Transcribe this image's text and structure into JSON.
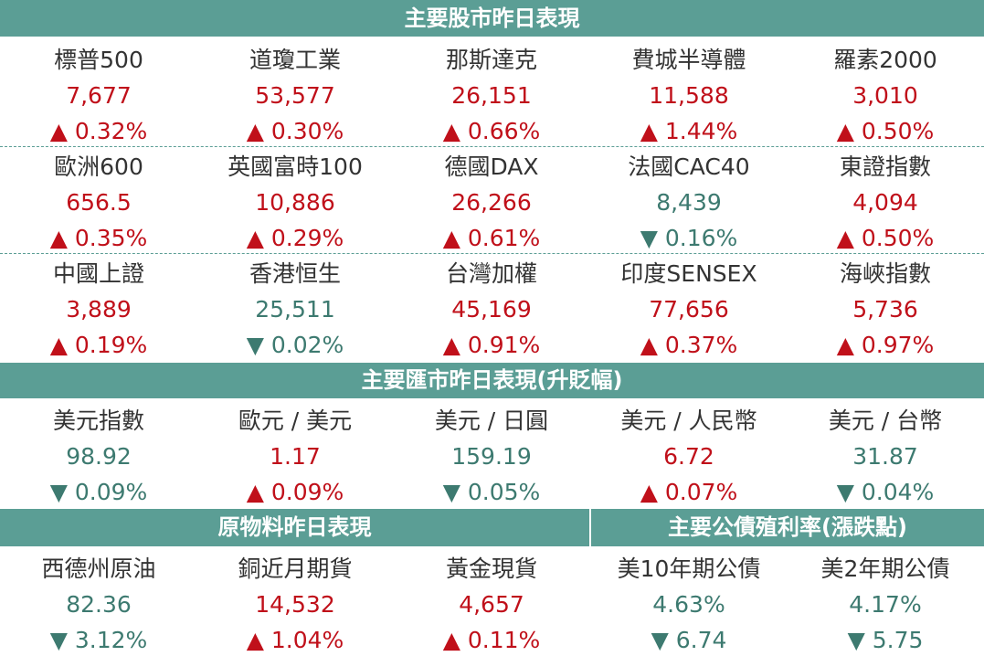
{
  "stocks": {
    "title": "主要股市昨日表現",
    "rows": [
      [
        {
          "name": "標普500",
          "value": "7,677",
          "change": "▲ 0.32%"
        },
        {
          "name": "道瓊工業",
          "value": "53,577",
          "change": "▲ 0.30%"
        },
        {
          "name": "那斯達克",
          "value": "26,151",
          "change": "▲ 0.66%"
        },
        {
          "name": "費城半導體",
          "value": "11,588",
          "change": "▲ 1.44%"
        },
        {
          "name": "羅素2000",
          "value": "3,010",
          "change": "▲ 0.50%"
        }
      ],
      [
        {
          "name": "歐洲600",
          "value": "656.5",
          "change": "▲ 0.35%"
        },
        {
          "name": "英國富時100",
          "value": "10,886",
          "change": "▲ 0.29%"
        },
        {
          "name": "德國DAX",
          "value": "26,266",
          "change": "▲ 0.61%"
        },
        {
          "name": "法國CAC40",
          "value": "8,439",
          "change": "▼ 0.16%"
        },
        {
          "name": "東證指數",
          "value": "4,094",
          "change": "▲ 0.50%"
        }
      ],
      [
        {
          "name": "中國上證",
          "value": "3,889",
          "change": "▲ 0.19%"
        },
        {
          "name": "香港恒生",
          "value": "25,511",
          "change": "▼ 0.02%"
        },
        {
          "name": "台灣加權",
          "value": "45,169",
          "change": "▲ 0.91%"
        },
        {
          "name": "印度SENSEX",
          "value": "77,656",
          "change": "▲ 0.37%"
        },
        {
          "name": "海峽指數",
          "value": "5,736",
          "change": "▲ 0.97%"
        }
      ]
    ]
  },
  "fx": {
    "title": "主要匯市昨日表現(升貶幅)",
    "items": [
      {
        "name": "美元指數",
        "value": "98.92",
        "change": "▼ 0.09%"
      },
      {
        "name": "歐元 / 美元",
        "value": "1.17",
        "change": "▲ 0.09%"
      },
      {
        "name": "美元 / 日圓",
        "value": "159.19",
        "change": "▼ 0.05%"
      },
      {
        "name": "美元 / 人民幣",
        "value": "6.72",
        "change": "▲ 0.07%"
      },
      {
        "name": "美元 / 台幣",
        "value": "31.87",
        "change": "▼ 0.04%"
      }
    ]
  },
  "commodities": {
    "title": "原物料昨日表現",
    "items": [
      {
        "name": "西德州原油",
        "value": "82.36",
        "change": "▼ 3.12%"
      },
      {
        "name": "銅近月期貨",
        "value": "14,532",
        "change": "▲ 1.04%"
      },
      {
        "name": "黃金現貨",
        "value": "4,657",
        "change": "▲ 0.11%"
      }
    ]
  },
  "bonds": {
    "title": "主要公債殖利率(漲跌點)",
    "items": [
      {
        "name": "美10年期公債",
        "value": "4.63%",
        "change": "▼ 6.74"
      },
      {
        "name": "美2年期公債",
        "value": "4.17%",
        "change": "▼ 5.75"
      }
    ]
  }
}
